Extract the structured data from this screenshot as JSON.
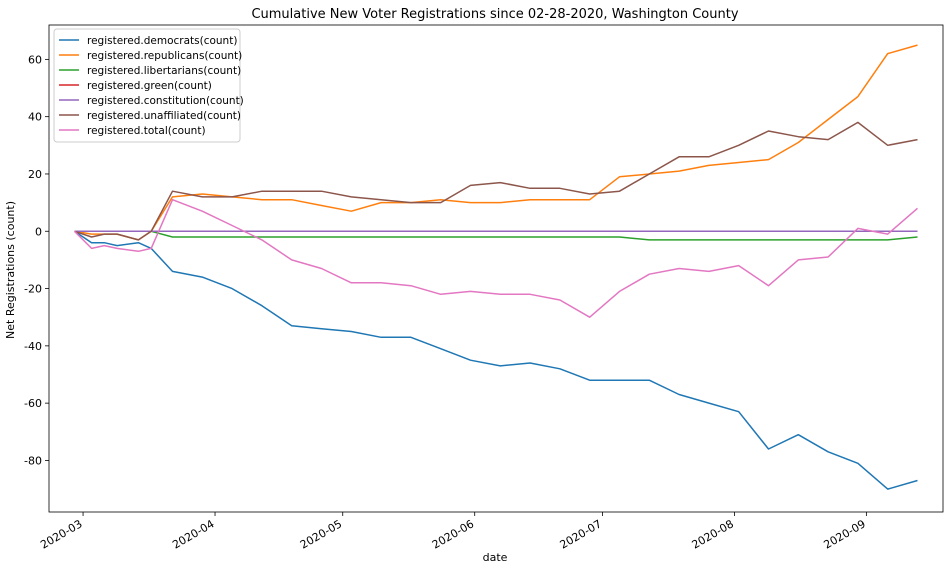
{
  "chart_data": {
    "type": "line",
    "title": "Cumulative New Voter Registrations since 02-28-2020, Washington County",
    "xlabel": "date",
    "ylabel": "Net Registrations (count)",
    "xlim": [
      "2020-02-22",
      "2020-09-19"
    ],
    "ylim": [
      -98,
      72
    ],
    "yticks": [
      -80,
      -60,
      -40,
      -20,
      0,
      20,
      40,
      60
    ],
    "xticks": [
      "2020-03-01",
      "2020-04-01",
      "2020-05-01",
      "2020-06-01",
      "2020-07-01",
      "2020-08-01",
      "2020-09-01"
    ],
    "xtick_labels": [
      "2020-03",
      "2020-04",
      "2020-05",
      "2020-06",
      "2020-07",
      "2020-08",
      "2020-09"
    ],
    "legend_position": "upper-left",
    "grid": false,
    "x": [
      "2020-02-28",
      "2020-03-03",
      "2020-03-06",
      "2020-03-09",
      "2020-03-14",
      "2020-03-17",
      "2020-03-22",
      "2020-03-29",
      "2020-04-05",
      "2020-04-12",
      "2020-04-19",
      "2020-04-26",
      "2020-05-03",
      "2020-05-10",
      "2020-05-17",
      "2020-05-24",
      "2020-05-31",
      "2020-06-07",
      "2020-06-14",
      "2020-06-21",
      "2020-06-28",
      "2020-07-05",
      "2020-07-12",
      "2020-07-19",
      "2020-07-26",
      "2020-08-02",
      "2020-08-09",
      "2020-08-16",
      "2020-08-23",
      "2020-08-30",
      "2020-09-06",
      "2020-09-13"
    ],
    "series": [
      {
        "name": "registered.democrats(count)",
        "color": "#1f77b4",
        "values": [
          0,
          -4,
          -4,
          -5,
          -4,
          -6,
          -14,
          -16,
          -20,
          -26,
          -33,
          -34,
          -35,
          -37,
          -37,
          -41,
          -45,
          -47,
          -46,
          -48,
          -52,
          -52,
          -52,
          -57,
          -60,
          -63,
          -76,
          -71,
          -77,
          -81,
          -90,
          -87
        ]
      },
      {
        "name": "registered.republicans(count)",
        "color": "#ff7f0e",
        "values": [
          0,
          -1,
          -1,
          -1,
          -3,
          0,
          12,
          13,
          12,
          11,
          11,
          9,
          7,
          10,
          10,
          11,
          10,
          10,
          11,
          11,
          11,
          19,
          20,
          21,
          23,
          24,
          25,
          31,
          39,
          47,
          62,
          65
        ]
      },
      {
        "name": "registered.libertarians(count)",
        "color": "#2ca02c",
        "values": [
          0,
          0,
          0,
          0,
          0,
          0,
          -2,
          -2,
          -2,
          -2,
          -2,
          -2,
          -2,
          -2,
          -2,
          -2,
          -2,
          -2,
          -2,
          -2,
          -2,
          -2,
          -3,
          -3,
          -3,
          -3,
          -3,
          -3,
          -3,
          -3,
          -3,
          -2
        ]
      },
      {
        "name": "registered.green(count)",
        "color": "#d62728",
        "values": [
          0,
          0,
          0,
          0,
          0,
          0,
          0,
          0,
          0,
          0,
          0,
          0,
          0,
          0,
          0,
          0,
          0,
          0,
          0,
          0,
          0,
          0,
          0,
          0,
          0,
          0,
          0,
          0,
          0,
          0,
          0,
          0
        ]
      },
      {
        "name": "registered.constitution(count)",
        "color": "#9467bd",
        "values": [
          0,
          0,
          0,
          0,
          0,
          0,
          0,
          0,
          0,
          0,
          0,
          0,
          0,
          0,
          0,
          0,
          0,
          0,
          0,
          0,
          0,
          0,
          0,
          0,
          0,
          0,
          0,
          0,
          0,
          0,
          0,
          0
        ]
      },
      {
        "name": "registered.unaffiliated(count)",
        "color": "#8c564b",
        "values": [
          0,
          -2,
          -1,
          -1,
          -3,
          0,
          14,
          12,
          12,
          14,
          14,
          14,
          12,
          11,
          10,
          10,
          16,
          17,
          15,
          15,
          13,
          14,
          20,
          26,
          26,
          30,
          35,
          33,
          32,
          38,
          30,
          32
        ]
      },
      {
        "name": "registered.total(count)",
        "color": "#e377c2",
        "values": [
          0,
          -6,
          -5,
          -6,
          -7,
          -6,
          11,
          7,
          2,
          -3,
          -10,
          -13,
          -18,
          -18,
          -19,
          -22,
          -21,
          -22,
          -22,
          -24,
          -30,
          -21,
          -15,
          -13,
          -14,
          -12,
          -19,
          -10,
          -9,
          1,
          -1,
          8
        ]
      }
    ]
  }
}
